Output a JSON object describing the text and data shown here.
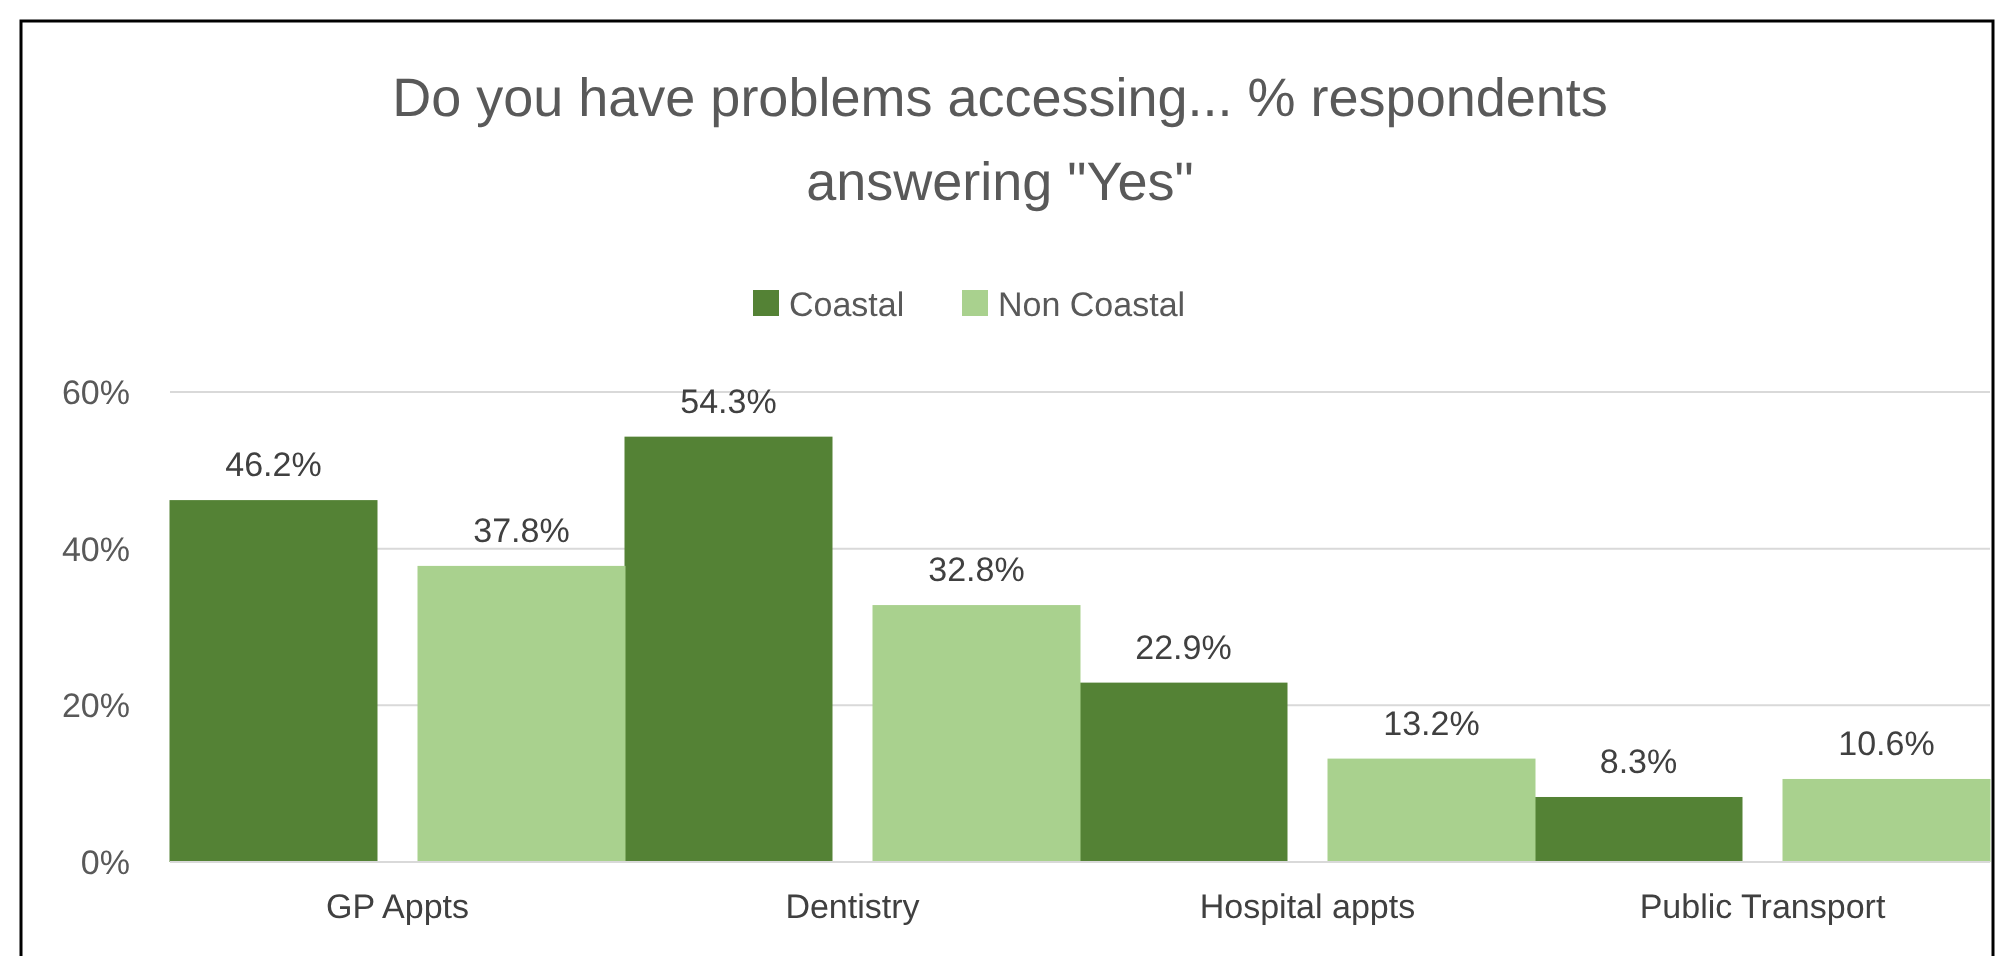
{
  "chart_data": {
    "type": "bar",
    "title": "Do you have problems accessing... % respondents\nanswering \"Yes\"",
    "categories": [
      "GP Appts",
      "Dentistry",
      "Hospital appts",
      "Public Transport"
    ],
    "series": [
      {
        "name": "Coastal",
        "color": "#548235",
        "values": [
          46.2,
          54.3,
          22.9,
          8.3
        ],
        "value_labels": [
          "46.2%",
          "54.3%",
          "22.9%",
          "8.3%"
        ]
      },
      {
        "name": "Non Coastal",
        "color": "#a9d18e",
        "values": [
          37.8,
          32.8,
          13.2,
          10.6
        ],
        "value_labels": [
          "37.8%",
          "32.8%",
          "13.2%",
          "10.6%"
        ]
      }
    ],
    "ylim": [
      0,
      60
    ],
    "yticks": [
      {
        "value": 0,
        "label": "0%"
      },
      {
        "value": 20,
        "label": "20%"
      },
      {
        "value": 40,
        "label": "40%"
      },
      {
        "value": 60,
        "label": "60%"
      }
    ],
    "grid": "y",
    "legend": "top"
  }
}
